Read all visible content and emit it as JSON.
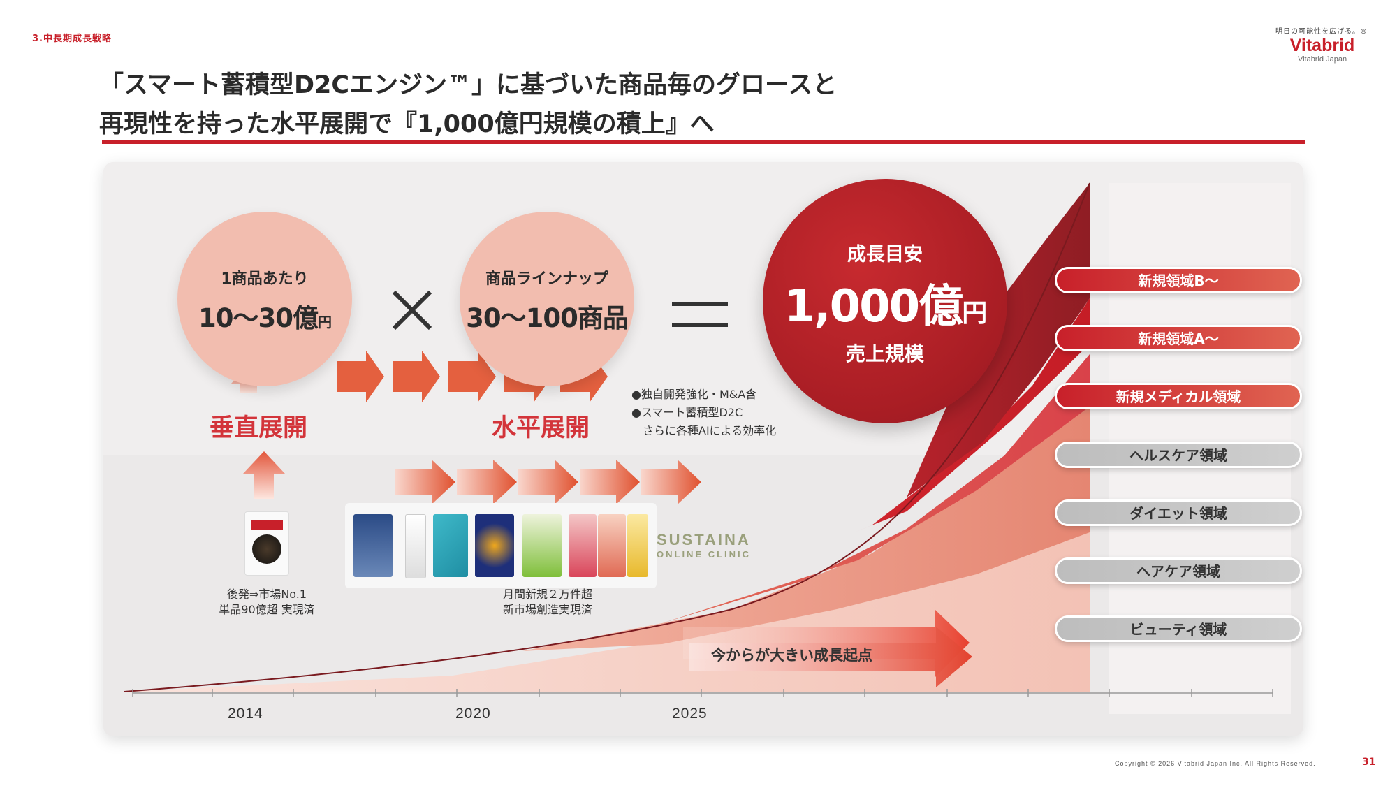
{
  "section_label": "3.中長期成長戦略",
  "logo": {
    "tagline": "明日の可能性を広げる。®",
    "brand": "Vitabrid",
    "sub": "Vitabrid Japan"
  },
  "title": {
    "line1": "「スマート蓄積型D2Cエンジン™」に基づいた商品毎のグロースと",
    "line2": "再現性を持った水平展開で『1,000億円規模の積上』へ"
  },
  "circles": {
    "per_product": {
      "label": "1商品あたり",
      "value": "10〜30億",
      "unit": "円"
    },
    "lineup": {
      "label": "商品ラインナップ",
      "value": "30〜100商品"
    },
    "target": {
      "label": "成長目安",
      "value": "1,000億",
      "unit": "円",
      "sub": "売上規模"
    }
  },
  "operators": {
    "times": "times-icon",
    "equals": "equals-icon"
  },
  "expansion": {
    "vertical": "垂直展開",
    "horizontal": "水平展開"
  },
  "notes": [
    "●独自開発強化・M&A含",
    "●スマート蓄積型D2C",
    "　さらに各種AIによる効率化"
  ],
  "captions": {
    "vertical": [
      "後発⇒市場No.1",
      "単品90億超 実現済"
    ],
    "horizontal": [
      "月間新規２万件超",
      "新市場創造実現済"
    ]
  },
  "sustaina": {
    "line1": "SUSTAINA",
    "line2": "ONLINE CLINIC"
  },
  "growth_callout": "今からが大きい成長起点",
  "segments": [
    {
      "label": "新規領域B〜",
      "style": "red"
    },
    {
      "label": "新規領域A〜",
      "style": "red"
    },
    {
      "label": "新規メディカル領域",
      "style": "red"
    },
    {
      "label": "ヘルスケア領域",
      "style": "grey"
    },
    {
      "label": "ダイエット領域",
      "style": "grey"
    },
    {
      "label": "ヘアケア領域",
      "style": "grey"
    },
    {
      "label": "ビューティ領域",
      "style": "grey"
    }
  ],
  "years": [
    "2014",
    "2020",
    "2025"
  ],
  "colors": {
    "accent": "#c8202a",
    "circle_light": "#f2bdaf",
    "arrow": "#e05a3e"
  },
  "copyright": "Copyright © 2026 Vitabrid Japan Inc. All Rights Reserved.",
  "page_number": "31"
}
